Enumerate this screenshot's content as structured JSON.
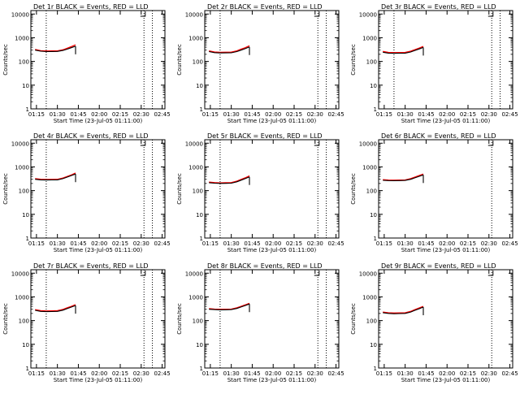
{
  "colors": {
    "events": "#000000",
    "lld": "#ff0000",
    "background": "#ffffff"
  },
  "common": {
    "ylabel": "Counts/sec",
    "xlabel": "Start Time (23-Jul-05 01:11:00)",
    "x_ticks": [
      "01:15",
      "01:30",
      "01:45",
      "02:00",
      "02:15",
      "02:30",
      "02:45"
    ],
    "y_ticks": [
      "1",
      "10",
      "100",
      "1000",
      "10000"
    ]
  },
  "chart_data": [
    {
      "type": "line",
      "title": "Det 1r BLACK = Events, RED = LLD",
      "xlabel": "Start Time (23-Jul-05 01:11:00)",
      "ylabel": "Counts/sec",
      "y_scale": "log",
      "ylim": [
        1,
        14000
      ],
      "xlim_minutes_after_start": [
        0,
        96
      ],
      "x": [
        "01:14",
        "01:18",
        "01:22",
        "01:26",
        "01:30",
        "01:34",
        "01:37",
        "01:40",
        "01:43"
      ],
      "series": [
        {
          "values": [
            300,
            270,
            260,
            262,
            265,
            290,
            330,
            380,
            440
          ]
        },
        {
          "values": [
            320,
            285,
            275,
            278,
            280,
            310,
            360,
            420,
            500
          ]
        }
      ],
      "vlines": [
        "01:22",
        "02:32",
        "02:38"
      ]
    },
    {
      "type": "line",
      "title": "Det 2r BLACK = Events, RED = LLD",
      "xlabel": "Start Time (23-Jul-05 01:11:00)",
      "ylabel": "Counts/sec",
      "y_scale": "log",
      "ylim": [
        1,
        14000
      ],
      "xlim_minutes_after_start": [
        0,
        96
      ],
      "x": [
        "01:14",
        "01:18",
        "01:22",
        "01:26",
        "01:30",
        "01:34",
        "01:37",
        "01:40",
        "01:43"
      ],
      "series": [
        {
          "values": [
            260,
            235,
            228,
            230,
            232,
            260,
            300,
            345,
            410
          ]
        },
        {
          "values": [
            280,
            250,
            242,
            245,
            248,
            280,
            330,
            380,
            460
          ]
        }
      ],
      "vlines": [
        "01:22",
        "02:32",
        "02:38"
      ]
    },
    {
      "type": "line",
      "title": "Det 3r BLACK = Events, RED = LLD",
      "xlabel": "Start Time (23-Jul-05 01:11:00)",
      "ylabel": "Counts/sec",
      "y_scale": "log",
      "ylim": [
        1,
        14000
      ],
      "xlim_minutes_after_start": [
        0,
        96
      ],
      "x": [
        "01:14",
        "01:18",
        "01:22",
        "01:26",
        "01:30",
        "01:34",
        "01:37",
        "01:40",
        "01:43"
      ],
      "series": [
        {
          "values": [
            245,
            225,
            220,
            222,
            224,
            250,
            290,
            335,
            390
          ]
        },
        {
          "values": [
            265,
            240,
            235,
            238,
            240,
            270,
            315,
            365,
            430
          ]
        }
      ],
      "vlines": [
        "01:22",
        "02:32",
        "02:38"
      ]
    },
    {
      "type": "line",
      "title": "Det 4r BLACK = Events, RED = LLD",
      "xlabel": "Start Time (23-Jul-05 01:11:00)",
      "ylabel": "Counts/sec",
      "y_scale": "log",
      "ylim": [
        1,
        14000
      ],
      "xlim_minutes_after_start": [
        0,
        96
      ],
      "x": [
        "01:14",
        "01:18",
        "01:22",
        "01:26",
        "01:30",
        "01:34",
        "01:37",
        "01:40",
        "01:43"
      ],
      "series": [
        {
          "values": [
            300,
            285,
            280,
            282,
            285,
            320,
            370,
            430,
            500
          ]
        },
        {
          "values": [
            320,
            300,
            295,
            298,
            300,
            340,
            395,
            460,
            550
          ]
        }
      ],
      "vlines": [
        "01:22",
        "02:32",
        "02:38"
      ]
    },
    {
      "type": "line",
      "title": "Det 5r BLACK = Events, RED = LLD",
      "xlabel": "Start Time (23-Jul-05 01:11:00)",
      "ylabel": "Counts/sec",
      "y_scale": "log",
      "ylim": [
        1,
        14000
      ],
      "xlim_minutes_after_start": [
        0,
        96
      ],
      "x": [
        "01:14",
        "01:18",
        "01:22",
        "01:26",
        "01:30",
        "01:34",
        "01:37",
        "01:40",
        "01:43"
      ],
      "series": [
        {
          "values": [
            215,
            205,
            200,
            202,
            205,
            235,
            275,
            320,
            380
          ]
        },
        {
          "values": [
            230,
            218,
            212,
            215,
            218,
            250,
            295,
            345,
            420
          ]
        }
      ],
      "vlines": [
        "01:22",
        "02:32",
        "02:38"
      ]
    },
    {
      "type": "line",
      "title": "Det 6r BLACK = Events, RED = LLD",
      "xlabel": "Start Time (23-Jul-05 01:11:00)",
      "ylabel": "Counts/sec",
      "y_scale": "log",
      "ylim": [
        1,
        14000
      ],
      "xlim_minutes_after_start": [
        0,
        96
      ],
      "x": [
        "01:14",
        "01:18",
        "01:22",
        "01:26",
        "01:30",
        "01:34",
        "01:37",
        "01:40",
        "01:43"
      ],
      "series": [
        {
          "values": [
            270,
            265,
            262,
            264,
            268,
            300,
            345,
            400,
            460
          ]
        },
        {
          "values": [
            290,
            280,
            276,
            278,
            282,
            320,
            370,
            430,
            500
          ]
        }
      ],
      "vlines": [
        "02:32"
      ]
    },
    {
      "type": "line",
      "title": "Det 7r BLACK = Events, RED = LLD",
      "xlabel": "Start Time (23-Jul-05 01:11:00)",
      "ylabel": "Counts/sec",
      "y_scale": "log",
      "ylim": [
        1,
        14000
      ],
      "xlim_minutes_after_start": [
        0,
        96
      ],
      "x": [
        "01:14",
        "01:18",
        "01:22",
        "01:26",
        "01:30",
        "01:34",
        "01:37",
        "01:40",
        "01:43"
      ],
      "series": [
        {
          "values": [
            270,
            245,
            238,
            240,
            245,
            275,
            320,
            370,
            430
          ]
        },
        {
          "values": [
            290,
            262,
            255,
            258,
            262,
            295,
            345,
            400,
            470
          ]
        }
      ],
      "vlines": [
        "01:22",
        "02:32",
        "02:38"
      ]
    },
    {
      "type": "line",
      "title": "Det 8r BLACK = Events, RED = LLD",
      "xlabel": "Start Time (23-Jul-05 01:11:00)",
      "ylabel": "Counts/sec",
      "y_scale": "log",
      "ylim": [
        1,
        14000
      ],
      "xlim_minutes_after_start": [
        0,
        96
      ],
      "x": [
        "01:14",
        "01:18",
        "01:22",
        "01:26",
        "01:30",
        "01:34",
        "01:37",
        "01:40",
        "01:43"
      ],
      "series": [
        {
          "values": [
            300,
            290,
            285,
            287,
            290,
            325,
            375,
            430,
            500
          ]
        },
        {
          "values": [
            320,
            305,
            300,
            303,
            306,
            345,
            400,
            460,
            540
          ]
        }
      ],
      "vlines": [
        "01:22",
        "02:32",
        "02:38"
      ]
    },
    {
      "type": "line",
      "title": "Det 9r BLACK = Events, RED = LLD",
      "xlabel": "Start Time (23-Jul-05 01:11:00)",
      "ylabel": "Counts/sec",
      "y_scale": "log",
      "ylim": [
        1,
        14000
      ],
      "xlim_minutes_after_start": [
        0,
        96
      ],
      "x": [
        "01:14",
        "01:18",
        "01:22",
        "01:26",
        "01:30",
        "01:34",
        "01:37",
        "01:40",
        "01:43"
      ],
      "series": [
        {
          "values": [
            215,
            200,
            195,
            197,
            200,
            230,
            270,
            315,
            370
          ]
        },
        {
          "values": [
            230,
            213,
            208,
            210,
            214,
            245,
            290,
            340,
            400
          ]
        }
      ],
      "vlines": [
        "02:32"
      ]
    }
  ]
}
